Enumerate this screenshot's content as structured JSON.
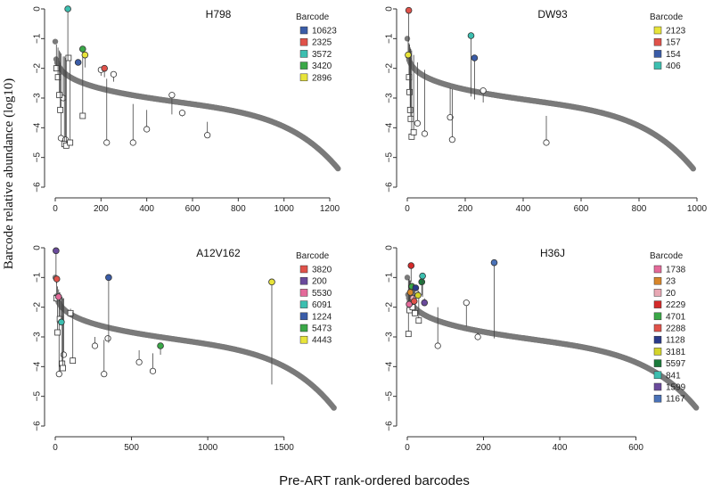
{
  "chart_data": {
    "type": "scatter",
    "ylabel": "Barcode relative abundance (log10)",
    "xlabel": "Pre-ART rank-ordered barcodes",
    "legend_title": "Barcode",
    "panels": [
      {
        "title": "H798",
        "xlim": [
          0,
          1200
        ],
        "xticks": [
          0,
          200,
          400,
          600,
          800,
          1000,
          1200
        ],
        "ylim": [
          -6,
          0
        ],
        "yticks": [
          0,
          -1,
          -2,
          -3,
          -4,
          -5,
          -6
        ],
        "curve": {
          "n": 1240,
          "start": -1.1,
          "end": -5.4
        },
        "legend": [
          {
            "label": "10623",
            "color": "#3a5ca8"
          },
          {
            "label": "2325",
            "color": "#e0524a"
          },
          {
            "label": "3572",
            "color": "#3cbfb0"
          },
          {
            "label": "3420",
            "color": "#3aa847"
          },
          {
            "label": "2896",
            "color": "#e8e43a"
          }
        ],
        "colored_points": [
          {
            "x": 55,
            "from": -1.75,
            "y": 0.0,
            "color": "#3cbfb0"
          },
          {
            "x": 100,
            "from": -1.9,
            "y": -1.8,
            "color": "#3a5ca8"
          },
          {
            "x": 120,
            "from": -1.95,
            "y": -1.35,
            "color": "#3aa847"
          },
          {
            "x": 130,
            "from": -1.97,
            "y": -1.55,
            "color": "#e8e43a"
          },
          {
            "x": 215,
            "from": -2.3,
            "y": -2.0,
            "color": "#e0524a"
          }
        ],
        "open_circles": [
          {
            "x": 25,
            "from": -1.5,
            "y": -4.35
          },
          {
            "x": 35,
            "from": -1.6,
            "y": -3.0
          },
          {
            "x": 45,
            "from": -1.65,
            "y": -4.4
          },
          {
            "x": 200,
            "from": -2.25,
            "y": -2.05
          },
          {
            "x": 225,
            "from": -2.35,
            "y": -4.5
          },
          {
            "x": 255,
            "from": -2.45,
            "y": -2.2
          },
          {
            "x": 340,
            "from": -3.2,
            "y": -4.5
          },
          {
            "x": 400,
            "from": -3.4,
            "y": -4.05
          },
          {
            "x": 510,
            "from": -3.55,
            "y": -2.9
          },
          {
            "x": 555,
            "from": -3.62,
            "y": -3.5
          },
          {
            "x": 665,
            "from": -3.8,
            "y": -4.25
          }
        ],
        "open_squares": [
          {
            "x": 5,
            "from": -1.2,
            "y": -2.0
          },
          {
            "x": 12,
            "from": -1.3,
            "y": -2.3
          },
          {
            "x": 18,
            "from": -1.4,
            "y": -2.9
          },
          {
            "x": 22,
            "from": -1.45,
            "y": -3.4
          },
          {
            "x": 40,
            "from": -1.6,
            "y": -4.55
          },
          {
            "x": 48,
            "from": -1.65,
            "y": -4.6
          },
          {
            "x": 58,
            "from": -1.7,
            "y": -1.65
          },
          {
            "x": 65,
            "from": -1.75,
            "y": -4.5
          },
          {
            "x": 120,
            "from": -1.95,
            "y": -3.6
          }
        ]
      },
      {
        "title": "DW93",
        "xlim": [
          0,
          1000
        ],
        "xticks": [
          0,
          200,
          400,
          600,
          800,
          1000
        ],
        "ylim": [
          -6,
          0
        ],
        "yticks": [
          0,
          -1,
          -2,
          -3,
          -4,
          -5,
          -6
        ],
        "curve": {
          "n": 990,
          "start": -1.0,
          "end": -5.4
        },
        "legend": [
          {
            "label": "2123",
            "color": "#e8e43a"
          },
          {
            "label": "157",
            "color": "#e0524a"
          },
          {
            "label": "154",
            "color": "#3a5ca8"
          },
          {
            "label": "406",
            "color": "#3cbfb0"
          }
        ],
        "colored_points": [
          {
            "x": 5,
            "from": -1.1,
            "y": -0.05,
            "color": "#e0524a"
          },
          {
            "x": 3,
            "from": -1.05,
            "y": -1.55,
            "color": "#e8e43a"
          },
          {
            "x": 220,
            "from": -2.95,
            "y": -0.9,
            "color": "#3cbfb0"
          },
          {
            "x": 232,
            "from": -3.05,
            "y": -1.65,
            "color": "#3a5ca8"
          }
        ],
        "open_circles": [
          {
            "x": 35,
            "from": -1.8,
            "y": -3.85
          },
          {
            "x": 60,
            "from": -2.05,
            "y": -4.2
          },
          {
            "x": 148,
            "from": -2.65,
            "y": -3.65
          },
          {
            "x": 155,
            "from": -2.7,
            "y": -4.4
          },
          {
            "x": 262,
            "from": -3.15,
            "y": -2.75
          },
          {
            "x": 480,
            "from": -3.6,
            "y": -4.5
          }
        ],
        "open_squares": [
          {
            "x": 6,
            "from": -1.15,
            "y": -2.3
          },
          {
            "x": 8,
            "from": -1.2,
            "y": -2.8
          },
          {
            "x": 10,
            "from": -1.3,
            "y": -3.4
          },
          {
            "x": 12,
            "from": -1.35,
            "y": -3.7
          },
          {
            "x": 15,
            "from": -1.4,
            "y": -4.3
          },
          {
            "x": 22,
            "from": -1.55,
            "y": -4.15
          }
        ]
      },
      {
        "title": "A12V162",
        "xlim": [
          0,
          1800
        ],
        "xticks": [
          0,
          500,
          1000,
          1500
        ],
        "ylim": [
          -6,
          0
        ],
        "yticks": [
          0,
          -1,
          -2,
          -3,
          -4,
          -5,
          -6
        ],
        "curve": {
          "n": 1830,
          "start": -1.0,
          "end": -5.4
        },
        "legend": [
          {
            "label": "3820",
            "color": "#e0524a"
          },
          {
            "label": "200",
            "color": "#6a4a9c"
          },
          {
            "label": "5530",
            "color": "#e46a9a"
          },
          {
            "label": "6091",
            "color": "#3cbfb0"
          },
          {
            "label": "1224",
            "color": "#3a5ca8"
          },
          {
            "label": "5473",
            "color": "#3aa847"
          },
          {
            "label": "4443",
            "color": "#e8e43a"
          }
        ],
        "colored_points": [
          {
            "x": 5,
            "from": -1.05,
            "y": -0.1,
            "color": "#6a4a9c"
          },
          {
            "x": 10,
            "from": -1.2,
            "y": -1.05,
            "color": "#e0524a"
          },
          {
            "x": 22,
            "from": -1.4,
            "y": -1.65,
            "color": "#e46a9a"
          },
          {
            "x": 40,
            "from": -1.6,
            "y": -2.5,
            "color": "#3cbfb0"
          },
          {
            "x": 350,
            "from": -3.2,
            "y": -1.0,
            "color": "#3a5ca8"
          },
          {
            "x": 690,
            "from": -3.6,
            "y": -3.3,
            "color": "#3aa847"
          },
          {
            "x": 1420,
            "from": -4.6,
            "y": -1.15,
            "color": "#e8e43a"
          }
        ],
        "open_circles": [
          {
            "x": 25,
            "from": -1.5,
            "y": -4.25
          },
          {
            "x": 55,
            "from": -1.7,
            "y": -3.6
          },
          {
            "x": 260,
            "from": -3.0,
            "y": -3.3
          },
          {
            "x": 320,
            "from": -3.1,
            "y": -4.25
          },
          {
            "x": 345,
            "from": -3.15,
            "y": -3.05
          },
          {
            "x": 550,
            "from": -3.45,
            "y": -3.85
          },
          {
            "x": 640,
            "from": -3.55,
            "y": -4.15
          }
        ],
        "open_squares": [
          {
            "x": 8,
            "from": -1.15,
            "y": -1.7
          },
          {
            "x": 15,
            "from": -1.3,
            "y": -2.85
          },
          {
            "x": 30,
            "from": -1.5,
            "y": -2.4
          },
          {
            "x": 45,
            "from": -1.65,
            "y": -3.9
          },
          {
            "x": 50,
            "from": -1.7,
            "y": -4.05
          },
          {
            "x": 100,
            "from": -2.05,
            "y": -2.2
          },
          {
            "x": 115,
            "from": -2.15,
            "y": -3.8
          }
        ]
      },
      {
        "title": "H36J",
        "xlim": [
          0,
          760
        ],
        "xticks": [
          0,
          200,
          400,
          600
        ],
        "ylim": [
          -6,
          0
        ],
        "yticks": [
          0,
          -1,
          -2,
          -3,
          -4,
          -5,
          -6
        ],
        "curve": {
          "n": 760,
          "start": -1.0,
          "end": -5.4
        },
        "legend": [
          {
            "label": "1738",
            "color": "#e46a9a"
          },
          {
            "label": "23",
            "color": "#d8862a"
          },
          {
            "label": "20",
            "color": "#e8a8b4"
          },
          {
            "label": "2229",
            "color": "#d42a2a"
          },
          {
            "label": "4701",
            "color": "#3aa847"
          },
          {
            "label": "2288",
            "color": "#e0524a"
          },
          {
            "label": "1128",
            "color": "#2a3a8a"
          },
          {
            "label": "3181",
            "color": "#d4d42a"
          },
          {
            "label": "5597",
            "color": "#1a7a3a"
          },
          {
            "label": "841",
            "color": "#3cbfb0"
          },
          {
            "label": "1599",
            "color": "#6a4a9c"
          },
          {
            "label": "1167",
            "color": "#4a72b8"
          }
        ],
        "colored_points": [
          {
            "x": 5,
            "from": -1.05,
            "y": -1.9,
            "color": "#e46a9a"
          },
          {
            "x": 8,
            "from": -1.1,
            "y": -1.5,
            "color": "#d8862a"
          },
          {
            "x": 10,
            "from": -1.15,
            "y": -0.6,
            "color": "#d42a2a"
          },
          {
            "x": 12,
            "from": -1.2,
            "y": -1.3,
            "color": "#3aa847"
          },
          {
            "x": 15,
            "from": -1.25,
            "y": -1.7,
            "color": "#e8a8b4"
          },
          {
            "x": 18,
            "from": -1.3,
            "y": -1.8,
            "color": "#e0524a"
          },
          {
            "x": 22,
            "from": -1.35,
            "y": -1.35,
            "color": "#2a3a8a"
          },
          {
            "x": 28,
            "from": -1.45,
            "y": -1.6,
            "color": "#d4d42a"
          },
          {
            "x": 38,
            "from": -1.6,
            "y": -1.15,
            "color": "#1a7a3a"
          },
          {
            "x": 40,
            "from": -1.65,
            "y": -0.95,
            "color": "#3cbfb0"
          },
          {
            "x": 45,
            "from": -1.7,
            "y": -1.85,
            "color": "#6a4a9c"
          },
          {
            "x": 228,
            "from": -3.05,
            "y": -0.5,
            "color": "#4a72b8"
          }
        ],
        "open_circles": [
          {
            "x": 80,
            "from": -2.0,
            "y": -3.3
          },
          {
            "x": 155,
            "from": -2.65,
            "y": -1.85
          },
          {
            "x": 185,
            "from": -2.85,
            "y": -3.0
          }
        ],
        "open_squares": [
          {
            "x": 3,
            "from": -1.05,
            "y": -2.9
          },
          {
            "x": 6,
            "from": -1.1,
            "y": -2.1
          },
          {
            "x": 14,
            "from": -1.2,
            "y": -2.0
          },
          {
            "x": 20,
            "from": -1.3,
            "y": -2.2
          },
          {
            "x": 30,
            "from": -1.45,
            "y": -2.45
          }
        ]
      }
    ]
  }
}
